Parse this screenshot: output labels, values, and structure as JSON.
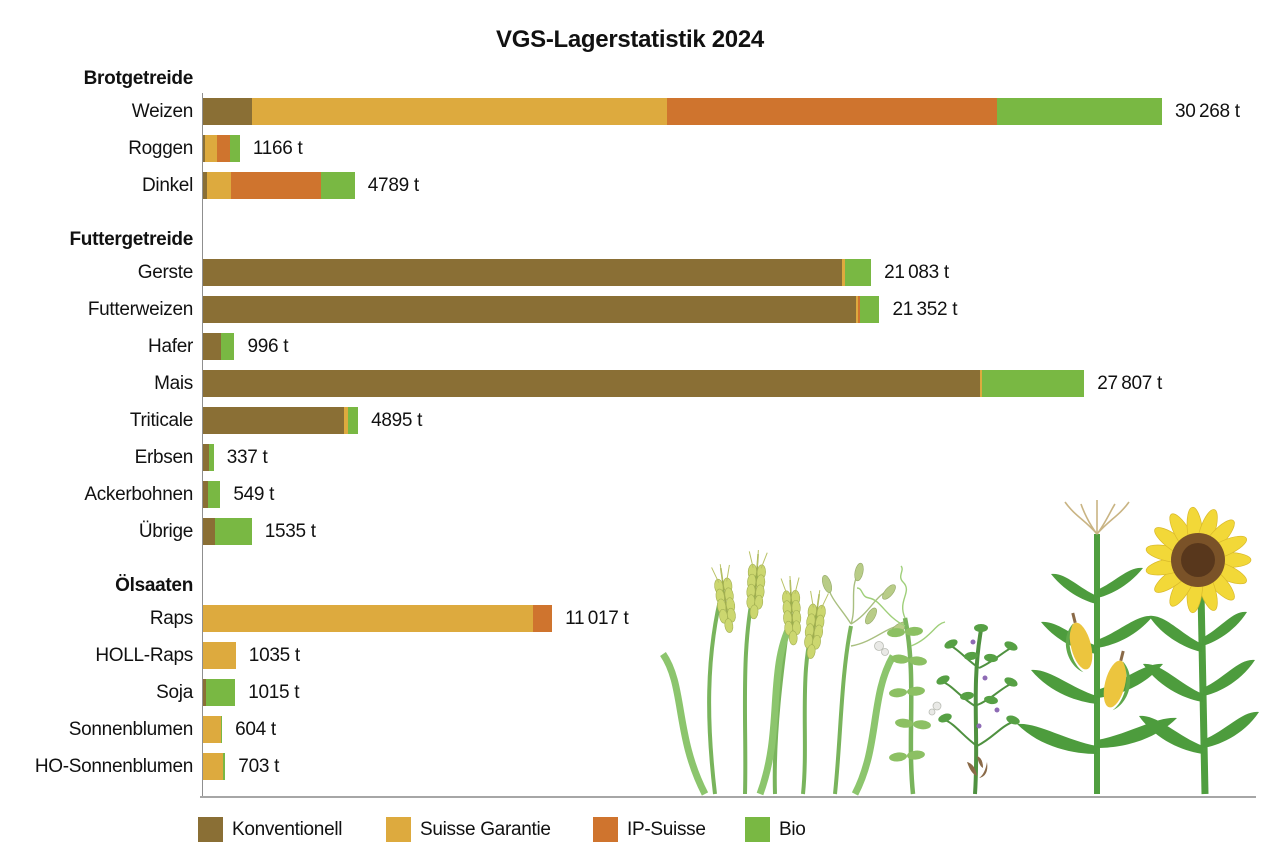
{
  "title": "VGS-Lagerstatistik 2024",
  "colors": {
    "konventionell": "#8a6f35",
    "suisse_garantie": "#ddaa3e",
    "ip_suisse": "#cf742e",
    "bio": "#79b843",
    "axis": "#8f8f8f",
    "baseline": "#a6a6a6"
  },
  "legend": [
    {
      "key": "konventionell",
      "label": "Konventionell"
    },
    {
      "key": "suisse_garantie",
      "label": "Suisse Garantie"
    },
    {
      "key": "ip_suisse",
      "label": "IP-Suisse"
    },
    {
      "key": "bio",
      "label": "Bio"
    }
  ],
  "chart_data": {
    "type": "bar",
    "orientation": "horizontal",
    "stacked": true,
    "title": "VGS-Lagerstatistik 2024",
    "value_unit": "t",
    "xlim": [
      0,
      33200
    ],
    "grid": false,
    "legend_position": "bottom",
    "series_keys": [
      "konventionell",
      "suisse_garantie",
      "ip_suisse",
      "bio"
    ],
    "groups": [
      {
        "label": "Brotgetreide",
        "rows": [
          {
            "label": "Weizen",
            "total": 30268,
            "total_label": "30 268 t",
            "segments": {
              "konventionell": 1550,
              "suisse_garantie": 13100,
              "ip_suisse": 10400,
              "bio": 5218
            }
          },
          {
            "label": "Roggen",
            "total": 1166,
            "total_label": "1166 t",
            "segments": {
              "konventionell": 74,
              "suisse_garantie": 382,
              "ip_suisse": 392,
              "bio": 318
            }
          },
          {
            "label": "Dinkel",
            "total": 4789,
            "total_label": "4789 t",
            "segments": {
              "konventionell": 135,
              "suisse_garantie": 750,
              "ip_suisse": 2850,
              "bio": 1054
            }
          }
        ]
      },
      {
        "label": "Futtergetreide",
        "rows": [
          {
            "label": "Gerste",
            "total": 21083,
            "total_label": "21 083 t",
            "segments": {
              "konventionell": 20150,
              "suisse_garantie": 120,
              "bio": 813
            }
          },
          {
            "label": "Futterweizen",
            "total": 21352,
            "total_label": "21 352 t",
            "segments": {
              "konventionell": 20600,
              "suisse_garantie": 60,
              "ip_suisse": 70,
              "bio": 622
            }
          },
          {
            "label": "Hafer",
            "total": 996,
            "total_label": "996 t",
            "segments": {
              "konventionell": 560,
              "bio": 436
            }
          },
          {
            "label": "Mais",
            "total": 27807,
            "total_label": "27 807 t",
            "segments": {
              "konventionell": 24520,
              "suisse_garantie": 60,
              "bio": 3227
            }
          },
          {
            "label": "Triticale",
            "total": 4895,
            "total_label": "4895 t",
            "segments": {
              "konventionell": 4450,
              "suisse_garantie": 130,
              "bio": 315
            }
          },
          {
            "label": "Erbsen",
            "total": 337,
            "total_label": "337 t",
            "segments": {
              "konventionell": 195,
              "bio": 142
            }
          },
          {
            "label": "Ackerbohnen",
            "total": 549,
            "total_label": "549 t",
            "segments": {
              "konventionell": 150,
              "bio": 399
            }
          },
          {
            "label": "Übrige",
            "total": 1535,
            "total_label": "1535 t",
            "segments": {
              "konventionell": 390,
              "bio": 1145
            }
          }
        ]
      },
      {
        "label": "Ölsaaten",
        "rows": [
          {
            "label": "Raps",
            "total": 11017,
            "total_label": "11 017 t",
            "segments": {
              "suisse_garantie": 10400,
              "ip_suisse": 617
            }
          },
          {
            "label": "HOLL-Raps",
            "total": 1035,
            "total_label": "1035 t",
            "segments": {
              "suisse_garantie": 1035
            }
          },
          {
            "label": "Soja",
            "total": 1015,
            "total_label": "1015 t",
            "segments": {
              "konventionell": 100,
              "bio": 915
            }
          },
          {
            "label": "Sonnenblumen",
            "total": 604,
            "total_label": "604 t",
            "segments": {
              "suisse_garantie": 560,
              "bio": 44
            }
          },
          {
            "label": "HO-Sonnenblumen",
            "total": 703,
            "total_label": "703 t",
            "segments": {
              "suisse_garantie": 640,
              "bio": 63
            }
          }
        ]
      }
    ]
  },
  "illustrations": [
    "wheat-oats",
    "pea-plant",
    "soy-plant",
    "corn",
    "sunflower"
  ]
}
